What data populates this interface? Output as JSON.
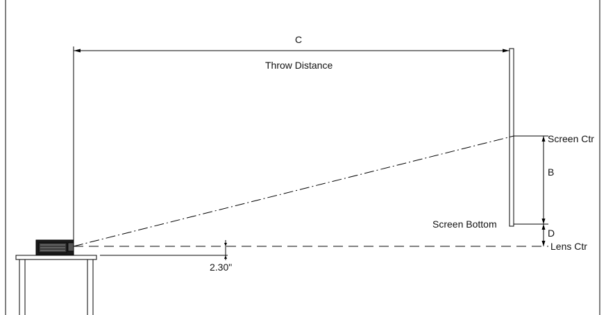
{
  "labels": {
    "c": "C",
    "throw_distance": "Throw Distance",
    "screen_ctr": "Screen Ctr",
    "b": "B",
    "screen_bottom": "Screen Bottom",
    "d": "D",
    "lens_ctr": "Lens Ctr",
    "offset": "2.30\""
  },
  "colors": {
    "line": "#000000",
    "background": "#ffffff"
  }
}
